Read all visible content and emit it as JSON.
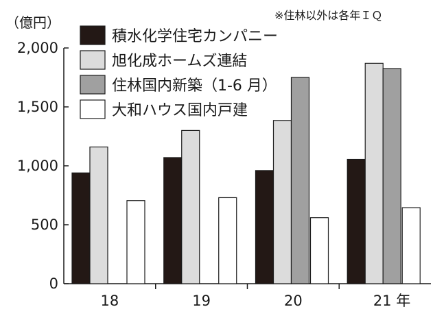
{
  "unit_label": "（億円）",
  "note": "※住林以外は各年ＩＱ",
  "colors": {
    "axis": "#1a1a1a",
    "series": [
      "#231815",
      "#dcdcdc",
      "#a0a0a0",
      "#ffffff"
    ],
    "bar_stroke": "#1a1a1a"
  },
  "chart_data": {
    "type": "bar",
    "categories": [
      "18",
      "19",
      "20",
      "21"
    ],
    "x_suffix": "年",
    "ylim": [
      0,
      2000
    ],
    "yticks": [
      0,
      500,
      1000,
      1500,
      2000
    ],
    "ytick_labels": [
      "0",
      "500",
      "1,000",
      "1,500",
      "2,000"
    ],
    "legend_position": "top",
    "grid": false,
    "series": [
      {
        "name": "積水化学住宅カンパニー",
        "values": [
          940,
          1070,
          960,
          1055
        ]
      },
      {
        "name": "旭化成ホームズ連結",
        "values": [
          1160,
          1300,
          1385,
          1870
        ]
      },
      {
        "name": "住林国内新築（1-6 月）",
        "values": [
          null,
          null,
          1750,
          1825
        ]
      },
      {
        "name": "大和ハウス国内戸建",
        "values": [
          705,
          730,
          560,
          645
        ]
      }
    ]
  }
}
